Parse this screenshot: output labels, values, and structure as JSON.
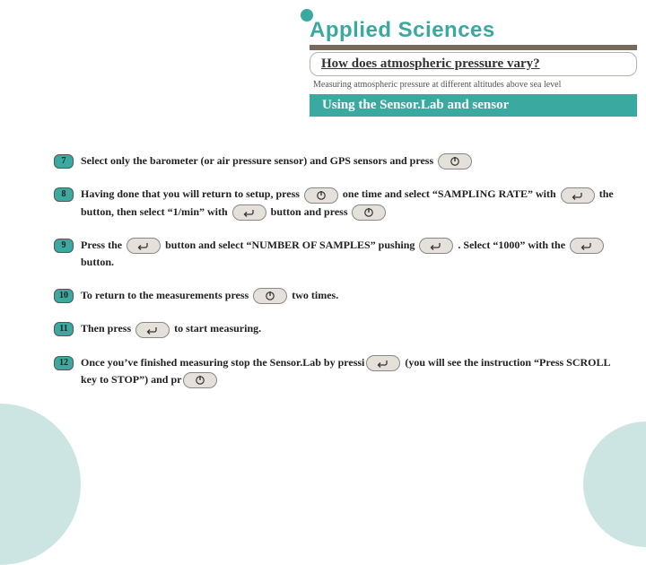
{
  "colors": {
    "teal": "#3aa99f",
    "teal_light": "#cce5e2",
    "brown": "#776a5a",
    "badge_bg": "#3aa99f",
    "icon_bg": "#e5e0da"
  },
  "header": {
    "brand": "Applied Sciences",
    "title": "How does atmospheric pressure vary?",
    "subtitle": "Measuring atmospheric pressure at different altitudes above sea level",
    "section": "Using the Sensor.Lab and sensor"
  },
  "steps": [
    {
      "n": "7",
      "parts": [
        "Select only the barometer (or air pressure sensor) and GPS sensors and press ",
        {
          "icon": "power"
        }
      ]
    },
    {
      "n": "8",
      "parts": [
        "Having done that you will return to setup, press ",
        {
          "icon": "power"
        },
        " one time and select “SAMPLING RATE” with ",
        {
          "icon": "enter"
        },
        " the button, then select “1/min” with ",
        {
          "icon": "enter"
        },
        " button and press ",
        {
          "icon": "power"
        }
      ]
    },
    {
      "n": "9",
      "parts": [
        "Press the ",
        {
          "icon": "enter"
        },
        " button and select “NUMBER OF SAMPLES” pushing ",
        {
          "icon": "enter"
        },
        " . Select “1000” with the ",
        {
          "icon": "enter"
        },
        " button."
      ]
    },
    {
      "n": "10",
      "parts": [
        "To return to the measurements press ",
        {
          "icon": "power"
        },
        " two times."
      ]
    },
    {
      "n": "11",
      "parts": [
        "Then press ",
        {
          "icon": "enter"
        },
        " to start measuring."
      ]
    },
    {
      "n": "12",
      "parts": [
        "Once you’ve finished measuring stop the Sensor.Lab by pressi",
        {
          "icon": "enter"
        },
        " (you will see the instruction “Press SCROLL key to STOP”) and pr",
        {
          "icon": "power"
        }
      ]
    }
  ]
}
